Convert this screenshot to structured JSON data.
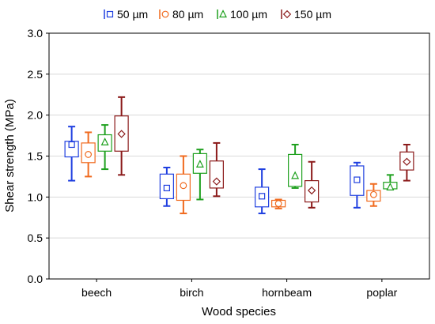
{
  "chart_data": {
    "type": "box",
    "xlabel": "Wood species",
    "ylabel": "Shear strength (MPa)",
    "ylim": [
      0.0,
      3.0
    ],
    "yticks": [
      "0.0",
      "0.5",
      "1.0",
      "1.5",
      "2.0",
      "2.5",
      "3.0"
    ],
    "categories": [
      "beech",
      "birch",
      "hornbeam",
      "poplar"
    ],
    "legend_position": "top",
    "series": [
      {
        "name": "50 µm",
        "color": "#1f3fe0",
        "marker": "square-icon",
        "boxes": [
          {
            "min": 1.2,
            "q1": 1.49,
            "median": 1.64,
            "q3": 1.68,
            "max": 1.86
          },
          {
            "min": 0.89,
            "q1": 0.98,
            "median": 1.11,
            "q3": 1.28,
            "max": 1.36
          },
          {
            "min": 0.8,
            "q1": 0.88,
            "median": 1.01,
            "q3": 1.12,
            "max": 1.34
          },
          {
            "min": 0.87,
            "q1": 1.02,
            "median": 1.21,
            "q3": 1.38,
            "max": 1.42
          }
        ]
      },
      {
        "name": "80 µm",
        "color": "#f06a1e",
        "marker": "circle-icon",
        "boxes": [
          {
            "min": 1.25,
            "q1": 1.42,
            "median": 1.52,
            "q3": 1.66,
            "max": 1.79
          },
          {
            "min": 0.8,
            "q1": 0.96,
            "median": 1.14,
            "q3": 1.28,
            "max": 1.5
          },
          {
            "min": 0.86,
            "q1": 0.88,
            "median": 0.92,
            "q3": 0.96,
            "max": 0.97
          },
          {
            "min": 0.89,
            "q1": 0.95,
            "median": 1.03,
            "q3": 1.08,
            "max": 1.16
          }
        ]
      },
      {
        "name": "100 µm",
        "color": "#1ea01e",
        "marker": "triangle-icon",
        "boxes": [
          {
            "min": 1.34,
            "q1": 1.56,
            "median": 1.67,
            "q3": 1.76,
            "max": 1.88
          },
          {
            "min": 0.97,
            "q1": 1.29,
            "median": 1.4,
            "q3": 1.53,
            "max": 1.58
          },
          {
            "min": 1.11,
            "q1": 1.13,
            "median": 1.26,
            "q3": 1.52,
            "max": 1.64
          },
          {
            "min": 1.09,
            "q1": 1.1,
            "median": 1.12,
            "q3": 1.18,
            "max": 1.27
          }
        ]
      },
      {
        "name": "150 µm",
        "color": "#8b1a1a",
        "marker": "diamond-icon",
        "boxes": [
          {
            "min": 1.27,
            "q1": 1.56,
            "median": 1.77,
            "q3": 1.99,
            "max": 2.22
          },
          {
            "min": 1.01,
            "q1": 1.11,
            "median": 1.19,
            "q3": 1.44,
            "max": 1.66
          },
          {
            "min": 0.87,
            "q1": 0.94,
            "median": 1.08,
            "q3": 1.2,
            "max": 1.43
          },
          {
            "min": 1.2,
            "q1": 1.33,
            "median": 1.43,
            "q3": 1.55,
            "max": 1.64
          }
        ]
      }
    ]
  }
}
